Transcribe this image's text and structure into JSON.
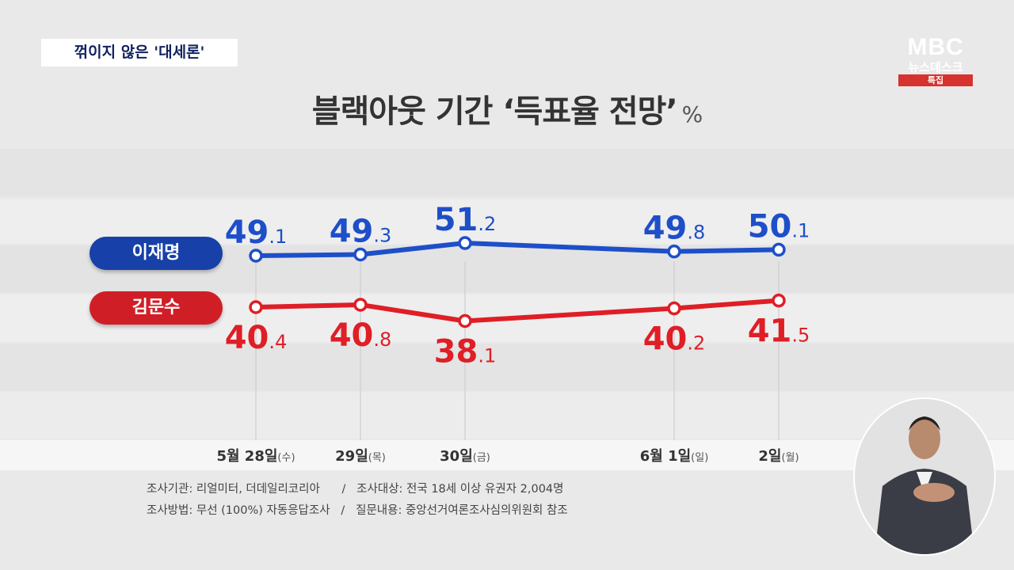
{
  "caption": "꺾이지 않은 '대세론'",
  "logo": {
    "brand": "MBC",
    "program": "뉴스데스크",
    "tag": "특집"
  },
  "title": {
    "text": "블랙아웃 기간 ‘득표율 전망’",
    "unit": "%"
  },
  "colors": {
    "blue": "#1e4fc9",
    "red": "#df1e26",
    "pill_blue": "#1740a8",
    "pill_red": "#d01e27"
  },
  "chart_data": {
    "type": "line",
    "title": "블랙아웃 기간 ‘득표율 전망’",
    "unit": "%",
    "categories": [
      {
        "date": "5월 28일",
        "day": "(수)"
      },
      {
        "date": "29일",
        "day": "(목)"
      },
      {
        "date": "30일",
        "day": "(금)"
      },
      {
        "date": "6월 1일",
        "day": "(일)"
      },
      {
        "date": "2일",
        "day": "(월)"
      }
    ],
    "series": [
      {
        "name": "이재명",
        "color": "#1e4fc9",
        "values": [
          49.1,
          49.3,
          51.2,
          49.8,
          50.1
        ]
      },
      {
        "name": "김문수",
        "color": "#df1e26",
        "values": [
          40.4,
          40.8,
          38.1,
          40.2,
          41.5
        ]
      }
    ],
    "grid": false,
    "legend": "left"
  },
  "footer": {
    "line1": "조사기관: 리얼미터, 더데일리코리아      /   조사대상: 전국 18세 이상 유권자 2,004명",
    "line2": "조사방법: 무선 (100%) 자동응답조사   /   질문내용: 중앙선거여론조사심의위원회 참조"
  }
}
